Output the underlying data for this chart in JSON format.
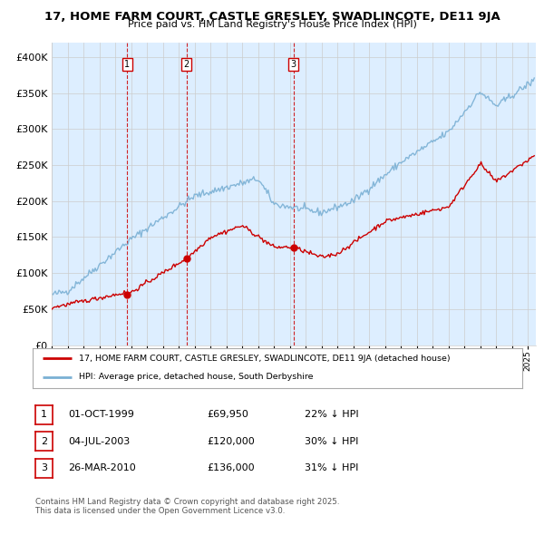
{
  "title1": "17, HOME FARM COURT, CASTLE GRESLEY, SWADLINCOTE, DE11 9JA",
  "title2": "Price paid vs. HM Land Registry's House Price Index (HPI)",
  "ylim": [
    0,
    420000
  ],
  "yticks": [
    0,
    50000,
    100000,
    150000,
    200000,
    250000,
    300000,
    350000,
    400000
  ],
  "xlim_start": 1995.0,
  "xlim_end": 2025.5,
  "sale_dates": [
    1999.75,
    2003.5,
    2010.23
  ],
  "sale_prices": [
    69950,
    120000,
    136000
  ],
  "sale_labels": [
    "1",
    "2",
    "3"
  ],
  "legend_red": "17, HOME FARM COURT, CASTLE GRESLEY, SWADLINCOTE, DE11 9JA (detached house)",
  "legend_blue": "HPI: Average price, detached house, South Derbyshire",
  "table_rows": [
    [
      "1",
      "01-OCT-1999",
      "£69,950",
      "22% ↓ HPI"
    ],
    [
      "2",
      "04-JUL-2003",
      "£120,000",
      "30% ↓ HPI"
    ],
    [
      "3",
      "26-MAR-2010",
      "£136,000",
      "31% ↓ HPI"
    ]
  ],
  "footnote1": "Contains HM Land Registry data © Crown copyright and database right 2025.",
  "footnote2": "This data is licensed under the Open Government Licence v3.0.",
  "red_color": "#cc0000",
  "blue_color": "#7ab0d4",
  "grid_color": "#cccccc",
  "bg_chart": "#ddeeff",
  "background_color": "#ffffff"
}
